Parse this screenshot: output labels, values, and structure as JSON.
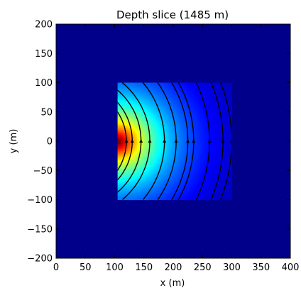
{
  "chart_data": {
    "type": "heatmap",
    "title": "Depth slice (1485 m)",
    "xlabel": "x (m)",
    "ylabel": "y (m)",
    "xlim": [
      0,
      400
    ],
    "ylim": [
      -200,
      200
    ],
    "xticks": [
      0,
      50,
      100,
      150,
      200,
      250,
      300,
      350,
      400
    ],
    "yticks": [
      -200,
      -150,
      -100,
      -50,
      0,
      50,
      100,
      150,
      200
    ],
    "grid": false,
    "colormap": "jet",
    "background_color": "#00008b",
    "field_region": {
      "x": [
        105,
        300
      ],
      "y": [
        -100,
        100
      ]
    },
    "field_peak": {
      "x": 105,
      "y": 0
    },
    "streamline_x_at_y0": [
      120,
      130,
      145,
      160,
      185,
      205,
      225,
      235,
      262,
      285,
      300
    ],
    "colors": {
      "streamline": "#000000"
    }
  }
}
